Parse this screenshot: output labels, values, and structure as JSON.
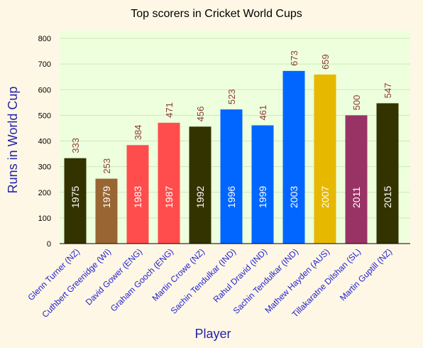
{
  "chart_data": {
    "type": "bar",
    "title": "Top scorers in Cricket World Cups",
    "xlabel": "Player",
    "ylabel": "Runs in World Cup",
    "ylim": [
      0,
      800
    ],
    "yticks": [
      "0",
      "100",
      "200",
      "300",
      "400",
      "500",
      "600",
      "700",
      "800"
    ],
    "grid": true,
    "categories": [
      "Glenn Turner (NZ)",
      "Cuthbert Greenidge (WI)",
      "David Gower (ENG)",
      "Graham Gooch (ENG)",
      "Martin Crowe (NZ)",
      "Sachin Tendulkar (IND)",
      "Rahul Dravid (IND)",
      "Sachin Tendulkar (IND)",
      "Mathew Hayden (AUS)",
      "Tillakaratne Dilshan (SL)",
      "Martin Guptill (NZ)"
    ],
    "values": [
      333,
      253,
      384,
      471,
      456,
      523,
      461,
      673,
      659,
      500,
      547
    ],
    "years": [
      "1975",
      "1979",
      "1983",
      "1987",
      "1992",
      "1996",
      "1999",
      "2003",
      "2007",
      "2011",
      "2015"
    ],
    "colors": [
      "#333300",
      "#996633",
      "#ff4d4d",
      "#ff4d4d",
      "#333300",
      "#0066ff",
      "#0066ff",
      "#0066ff",
      "#e6b800",
      "#993366",
      "#333300"
    ],
    "plot_background": "#eeffdd",
    "grid_color": "#cfe8b8"
  }
}
